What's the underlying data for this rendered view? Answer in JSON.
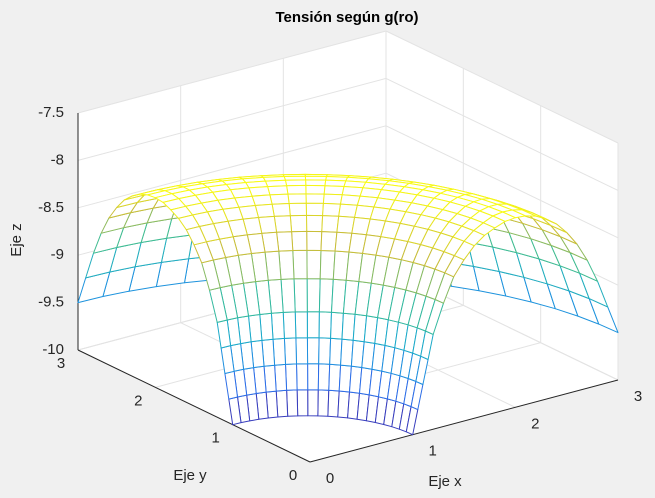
{
  "chart_data": {
    "type": "surface",
    "title": "Tensión según g(ro)",
    "xlabel": "Eje x",
    "ylabel": "Eje y",
    "zlabel": "Eje z",
    "ro": [
      1,
      1.05,
      1.1,
      1.15,
      1.2,
      1.3,
      1.4,
      1.5,
      1.6,
      1.7,
      1.8,
      1.9,
      2,
      2.1,
      2.2,
      2.3,
      2.4,
      2.5,
      2.6,
      2.7,
      2.8,
      2.9,
      3
    ],
    "theta_deg": [
      0,
      4.5,
      9,
      13.5,
      18,
      22.5,
      27,
      31.5,
      36,
      40.5,
      45,
      49.5,
      54,
      58.5,
      63,
      67.5,
      72,
      76.5,
      81,
      85.5,
      90
    ],
    "z": [
      -10,
      -9.75,
      -9.5,
      -9.25,
      -9,
      -8.7,
      -8.45,
      -8.3,
      -8.18,
      -8.1,
      -8.05,
      -8.01,
      -8,
      -8.01,
      -8.04,
      -8.1,
      -8.18,
      -8.3,
      -8.45,
      -8.65,
      -8.9,
      -9.2,
      -9.5
    ],
    "xlim": [
      0,
      3
    ],
    "ylim": [
      0,
      3
    ],
    "zlim": [
      -10,
      -7.5
    ],
    "xticks": [
      0,
      1,
      2,
      3
    ],
    "yticks": [
      0,
      1,
      2,
      3
    ],
    "zticks": [
      -10,
      -9.5,
      -9,
      -8.5,
      -8,
      -7.5
    ],
    "grid": true,
    "colormap": [
      "#3e26a8",
      "#2c73eb",
      "#16a6d5",
      "#38bc97",
      "#c5ba3b",
      "#f9fb15"
    ]
  }
}
